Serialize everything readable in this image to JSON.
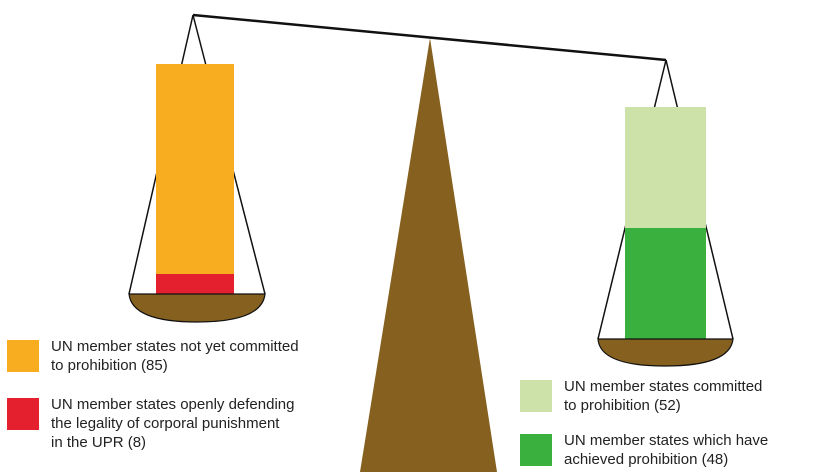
{
  "colors": {
    "base": "#85601f",
    "not_committed": "#f7ad1f",
    "defending": "#e4202f",
    "committed": "#cde2a8",
    "achieved": "#3ab03f",
    "line": "#111111"
  },
  "left_pan": {
    "icon": "balance-pan-icon",
    "total": 85,
    "highlighted": 8
  },
  "right_pan": {
    "icon": "balance-pan-icon",
    "total": 52,
    "highlighted": 48
  },
  "legend": {
    "not_committed": "UN member states not yet committed\nto prohibition (85)",
    "defending": "UN member states openly defending\nthe legality of corporal punishment\nin the UPR (8)",
    "committed": "UN member states committed\nto prohibition (52)",
    "achieved": "UN member states which have\nachieved prohibition (48)"
  }
}
